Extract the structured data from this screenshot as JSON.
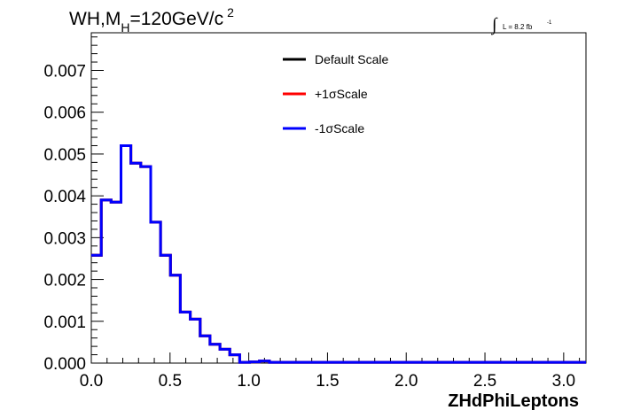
{
  "chart_data": {
    "type": "line",
    "title": {
      "prefix": "WH,M",
      "subscript": "H",
      "suffix": "=120GeV/c",
      "superscript": "2"
    },
    "luminosity": {
      "integral_symbol": "∫",
      "text": "L = 8.2 fb",
      "superscript": "-1"
    },
    "xlabel": "ZHdPhiLeptons",
    "ylabel": "",
    "xlim": [
      0,
      3.1416
    ],
    "ylim": [
      0,
      0.0079
    ],
    "x_ticks": [
      "0.0",
      "0.5",
      "1.0",
      "1.5",
      "2.0",
      "2.5",
      "3.0"
    ],
    "x_tick_values": [
      0,
      0.5,
      1.0,
      1.5,
      2.0,
      2.5,
      3.0
    ],
    "y_ticks": [
      "0.000",
      "0.001",
      "0.002",
      "0.003",
      "0.004",
      "0.005",
      "0.006",
      "0.007"
    ],
    "y_tick_values": [
      0,
      0.001,
      0.002,
      0.003,
      0.004,
      0.005,
      0.006,
      0.007
    ],
    "legend_placement": "top-center",
    "grid": false,
    "bin_edges": [
      0.0,
      0.0628,
      0.1257,
      0.1885,
      0.2513,
      0.3142,
      0.377,
      0.4398,
      0.5027,
      0.5655,
      0.6283,
      0.6912,
      0.754,
      0.8168,
      0.8796,
      0.9425,
      1.0053,
      1.0681,
      1.131,
      3.1416
    ],
    "series": [
      {
        "name": "Default Scale",
        "color": "#000000",
        "values": [
          0.00258,
          0.0039,
          0.00385,
          0.0052,
          0.00478,
          0.0047,
          0.00337,
          0.00258,
          0.0021,
          0.00122,
          0.00105,
          0.00065,
          0.00045,
          0.00033,
          0.0002,
          2e-05,
          3e-05,
          5e-05,
          2e-05
        ]
      },
      {
        "name": "+1σScale",
        "color": "#ff0000",
        "values": [
          0.00258,
          0.0039,
          0.00385,
          0.0052,
          0.00478,
          0.0047,
          0.00337,
          0.00258,
          0.0021,
          0.00122,
          0.00105,
          0.00065,
          0.00045,
          0.00033,
          0.0002,
          2e-05,
          3e-05,
          5e-05,
          2e-05
        ]
      },
      {
        "name": "-1σScale",
        "color": "#0000ff",
        "values": [
          0.00258,
          0.0039,
          0.00385,
          0.0052,
          0.00478,
          0.0047,
          0.00337,
          0.00258,
          0.0021,
          0.00122,
          0.00105,
          0.00065,
          0.00045,
          0.00033,
          0.0002,
          2e-05,
          3e-05,
          5e-05,
          2e-05
        ]
      }
    ]
  }
}
